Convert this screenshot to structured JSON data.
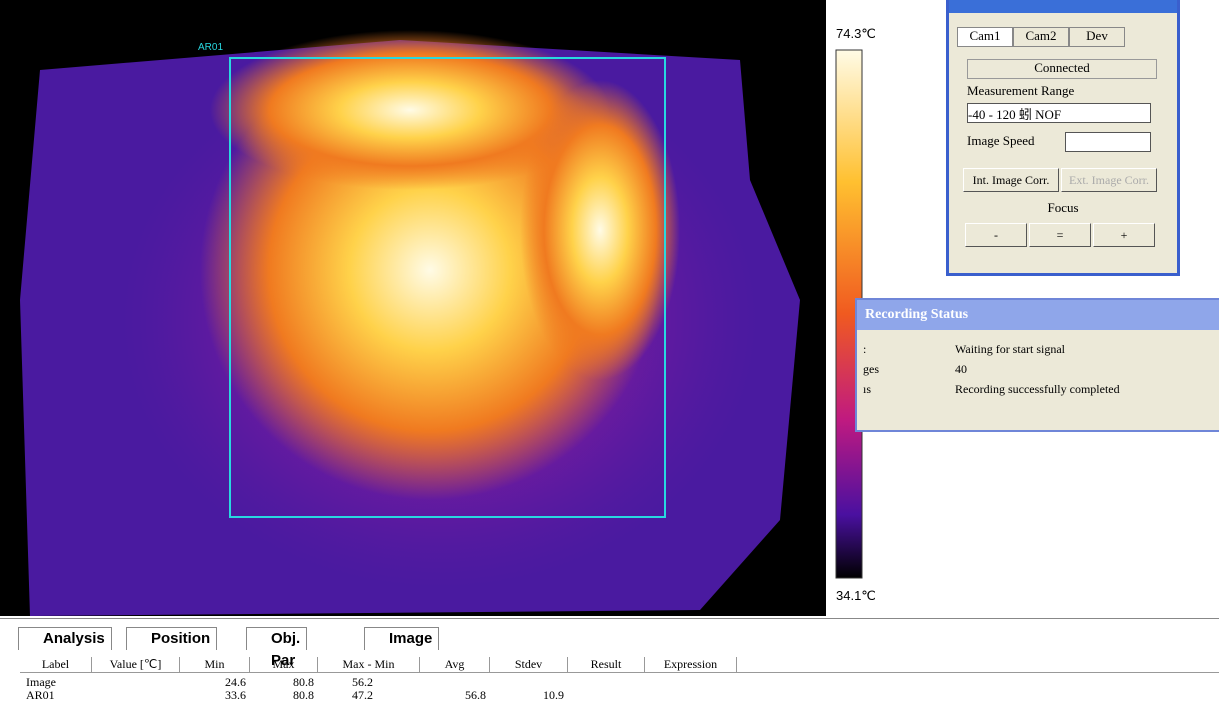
{
  "image_view": {
    "roi_label": "AR01",
    "scale_max": "74.3℃",
    "scale_min": "34.1℃"
  },
  "camera_panel": {
    "tabs": [
      "Cam1",
      "Cam2",
      "Dev"
    ],
    "status": "Connected",
    "range_label": "Measurement Range",
    "range_value": "-40 - 120 蚓 NOF",
    "speed_label": "Image Speed",
    "buttons": [
      "Int. Image Corr.",
      "Ext. Image Corr."
    ],
    "focus_label": "Focus",
    "focus_buttons": [
      "-",
      "=",
      "+"
    ]
  },
  "recording_status": {
    "title": "Recording Status",
    "rows": [
      {
        "key": ":",
        "value": "Waiting for start signal"
      },
      {
        "key": "ges",
        "value": "40"
      },
      {
        "key": "ıs",
        "value": "Recording successfully completed"
      }
    ]
  },
  "bottom_tabs": [
    "Analysis",
    "Position",
    "Obj. Par",
    "Image"
  ],
  "table": {
    "columns": [
      "Label",
      "Value [℃]",
      "Min",
      "Max",
      "Max - Min",
      "Avg",
      "Stdev",
      "Result",
      "Expression"
    ],
    "rows": [
      {
        "label": "Image",
        "min": "24.6",
        "max": "80.8",
        "range": "56.2"
      },
      {
        "label": "AR01",
        "min": "33.6",
        "max": "80.8",
        "range": "47.2",
        "avg": "56.8",
        "stdev": "10.9"
      }
    ]
  }
}
